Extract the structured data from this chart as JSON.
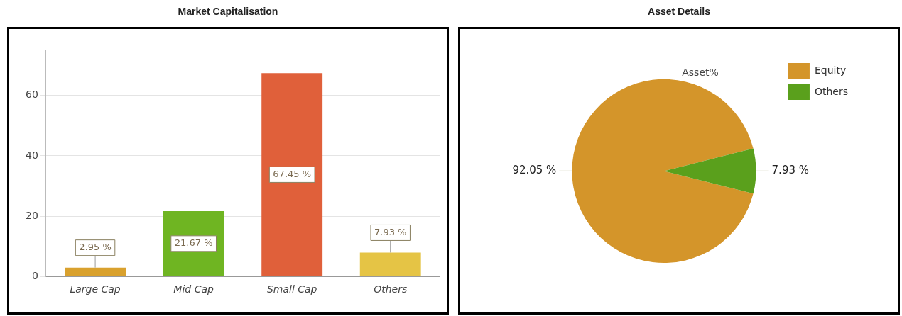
{
  "chart_data": [
    {
      "type": "bar",
      "title": "Market Capitalisation",
      "categories": [
        "Large Cap",
        "Mid Cap",
        "Small Cap",
        "Others"
      ],
      "values": [
        2.95,
        21.67,
        67.45,
        7.93
      ],
      "colors": [
        "#d9a12e",
        "#6fb522",
        "#e0603a",
        "#e5c445"
      ],
      "value_labels": [
        "2.95 %",
        "21.67 %",
        "67.45 %",
        "7.93 %"
      ],
      "ylim": [
        0,
        75
      ],
      "yticks": [
        0,
        20,
        40,
        60
      ],
      "grid": "y",
      "legend": false
    },
    {
      "type": "pie",
      "title": "Asset Details",
      "subtitle": "Asset%",
      "categories": [
        "Equity",
        "Others"
      ],
      "values": [
        92.05,
        7.93
      ],
      "colors": [
        "#d4952a",
        "#5aa01c"
      ],
      "value_labels": [
        "92.05 %",
        "7.93 %"
      ],
      "legend": "top right"
    }
  ]
}
